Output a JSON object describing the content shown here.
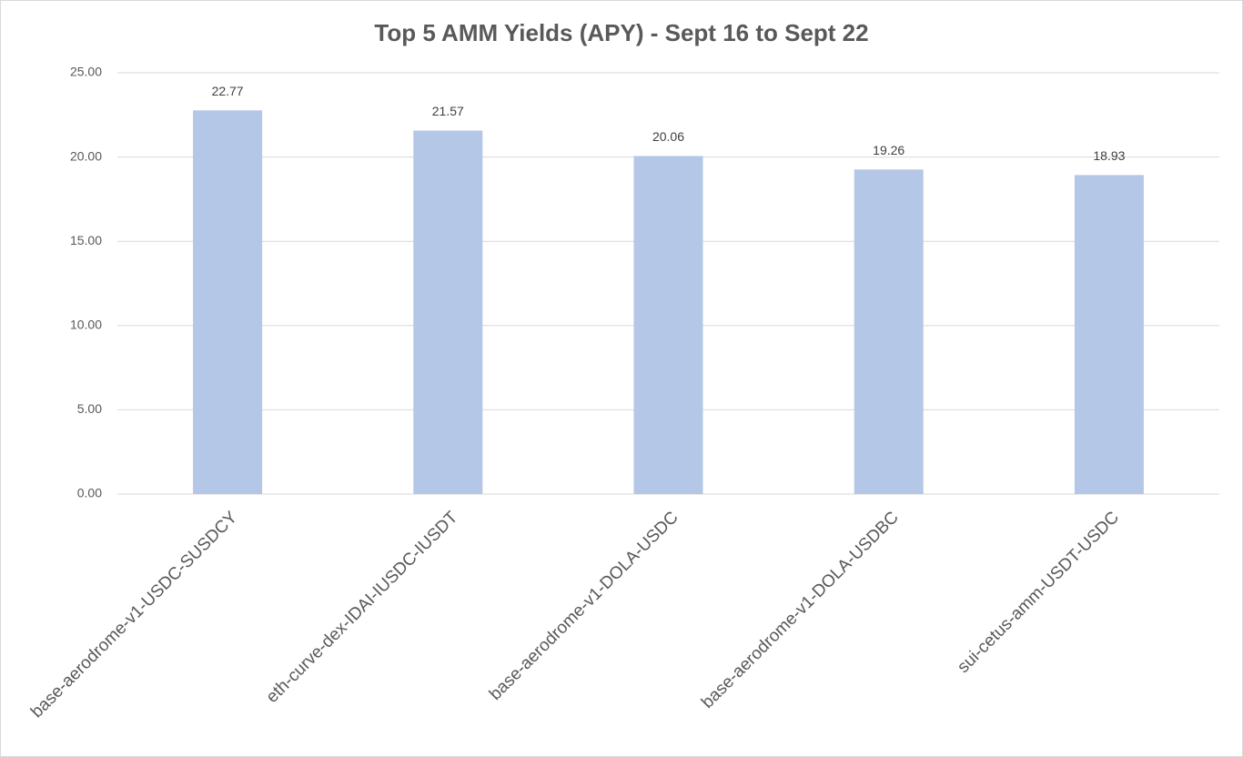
{
  "chart_data": {
    "type": "bar",
    "title": "Top 5 AMM Yields (APY) - Sept 16 to Sept 22",
    "categories": [
      "base-aerodrome-v1-USDC-SUSDCY",
      "eth-curve-dex-IDAI-IUSDC-IUSDT",
      "base-aerodrome-v1-DOLA-USDC",
      "base-aerodrome-v1-DOLA-USDBC",
      "sui-cetus-amm-USDT-USDC"
    ],
    "values": [
      22.77,
      21.57,
      20.06,
      19.26,
      18.93
    ],
    "color": "#b4c7e7",
    "ylim": [
      0,
      25
    ],
    "yticks": [
      {
        "value": 0,
        "label": "0.00"
      },
      {
        "value": 5,
        "label": "5.00"
      },
      {
        "value": 10,
        "label": "10.00"
      },
      {
        "value": 15,
        "label": "15.00"
      },
      {
        "value": 20,
        "label": "20.00"
      },
      {
        "value": 25,
        "label": "25.00"
      }
    ],
    "grid": true
  }
}
